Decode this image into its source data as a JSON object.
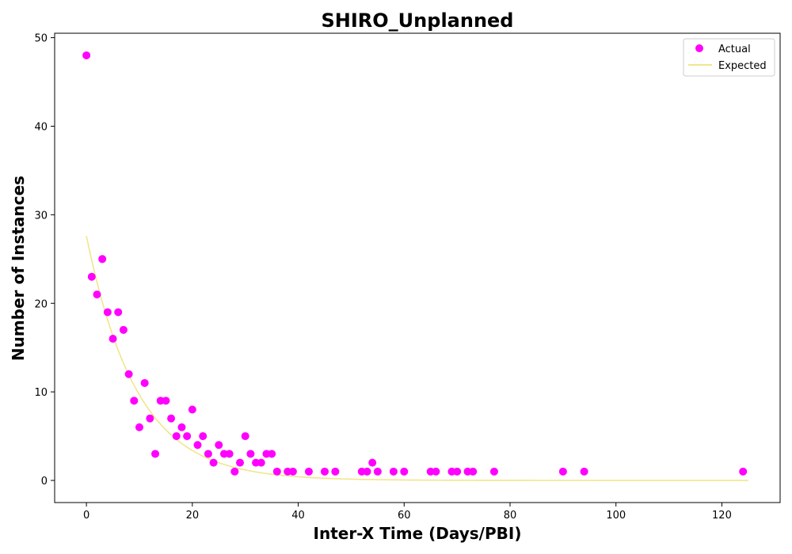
{
  "chart_data": {
    "type": "scatter",
    "title": "SHIRO_Unplanned",
    "xlabel": "Inter-X Time (Days/PBI)",
    "ylabel": "Number of Instances",
    "xlim": [
      -6,
      131
    ],
    "ylim": [
      -2.5,
      50.5
    ],
    "xticks": [
      0,
      20,
      40,
      60,
      80,
      100,
      120
    ],
    "yticks": [
      0,
      10,
      20,
      30,
      40,
      50
    ],
    "grid": false,
    "legend_position": "top-right",
    "series": [
      {
        "name": "Actual",
        "kind": "scatter",
        "color": "#ff00ff",
        "points": [
          [
            0,
            48
          ],
          [
            1,
            23
          ],
          [
            2,
            21
          ],
          [
            3,
            25
          ],
          [
            4,
            19
          ],
          [
            5,
            16
          ],
          [
            6,
            19
          ],
          [
            7,
            17
          ],
          [
            8,
            12
          ],
          [
            9,
            9
          ],
          [
            10,
            6
          ],
          [
            11,
            11
          ],
          [
            12,
            7
          ],
          [
            13,
            3
          ],
          [
            14,
            9
          ],
          [
            15,
            9
          ],
          [
            16,
            7
          ],
          [
            17,
            5
          ],
          [
            18,
            6
          ],
          [
            19,
            5
          ],
          [
            20,
            8
          ],
          [
            21,
            4
          ],
          [
            22,
            5
          ],
          [
            23,
            3
          ],
          [
            24,
            2
          ],
          [
            25,
            4
          ],
          [
            26,
            3
          ],
          [
            27,
            3
          ],
          [
            28,
            1
          ],
          [
            29,
            2
          ],
          [
            30,
            5
          ],
          [
            31,
            3
          ],
          [
            32,
            2
          ],
          [
            33,
            2
          ],
          [
            34,
            3
          ],
          [
            35,
            3
          ],
          [
            36,
            1
          ],
          [
            38,
            1
          ],
          [
            39,
            1
          ],
          [
            42,
            1
          ],
          [
            45,
            1
          ],
          [
            47,
            1
          ],
          [
            52,
            1
          ],
          [
            53,
            1
          ],
          [
            54,
            2
          ],
          [
            55,
            1
          ],
          [
            58,
            1
          ],
          [
            60,
            1
          ],
          [
            65,
            1
          ],
          [
            66,
            1
          ],
          [
            69,
            1
          ],
          [
            70,
            1
          ],
          [
            72,
            1
          ],
          [
            73,
            1
          ],
          [
            77,
            1
          ],
          [
            90,
            1
          ],
          [
            94,
            1
          ],
          [
            124,
            1
          ]
        ]
      },
      {
        "name": "Expected",
        "kind": "line",
        "color": "#f0e68c",
        "curve": {
          "form": "exponential_decay",
          "amplitude": 27.6,
          "rate": 0.105,
          "x_start": 0,
          "x_end": 125
        }
      }
    ]
  }
}
